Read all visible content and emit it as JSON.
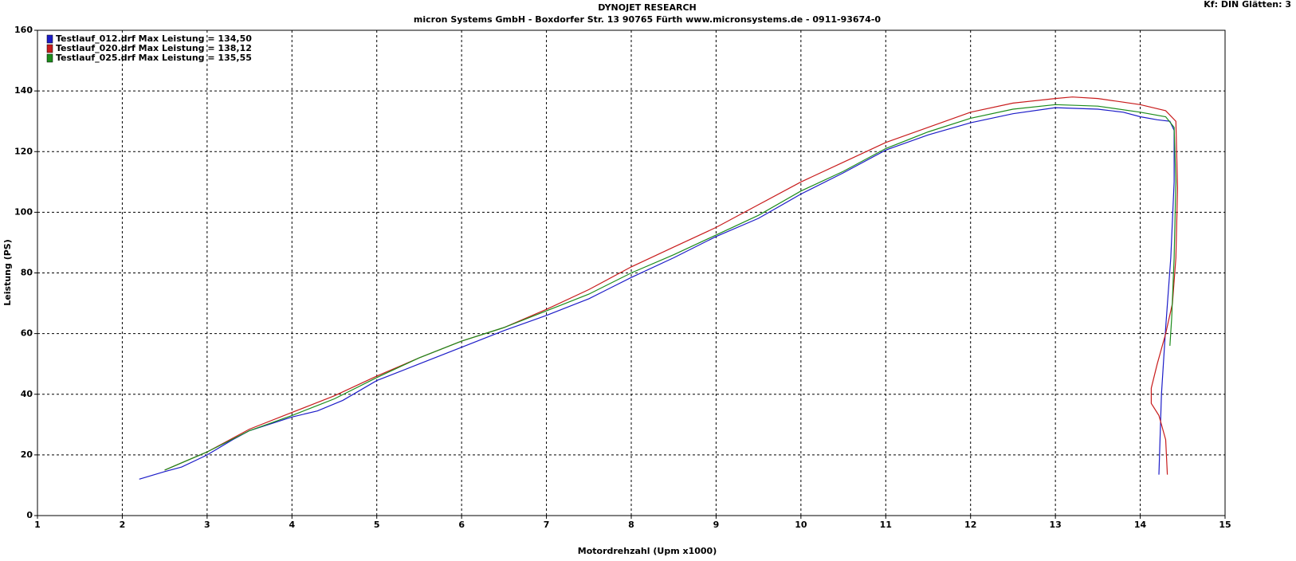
{
  "chart_data": {
    "type": "line",
    "title": "DYNOJET RESEARCH",
    "subtitle": "micron Systems GmbH - Boxdorfer Str. 13  90765 Fürth  www.micronsystems.de - 0911-93674-0",
    "annotation": "Kf: DIN  Glätten: 3",
    "x_label": "Motordrehzahl (Upm x1000)",
    "y_label": "Leistung (PS)",
    "xlim": [
      1,
      15
    ],
    "ylim": [
      0,
      160
    ],
    "xticks": [
      1,
      2,
      3,
      4,
      5,
      6,
      7,
      8,
      9,
      10,
      11,
      12,
      13,
      14,
      15
    ],
    "yticks": [
      0,
      20,
      40,
      60,
      80,
      100,
      120,
      140,
      160
    ],
    "grid": true,
    "legend": "top-left",
    "series": [
      {
        "name": "Testlauf_012.drf Max Leistung = 134,50",
        "color": "#1c1cc8",
        "x": [
          2.2,
          2.5,
          2.7,
          3,
          3.3,
          3.5,
          4,
          4.3,
          4.6,
          5,
          5.5,
          6,
          6.5,
          7,
          7.5,
          8,
          8.5,
          9,
          9.5,
          10,
          10.5,
          11,
          11.5,
          12,
          12.5,
          13,
          13.5,
          13.8,
          14,
          14.2,
          14.35,
          14.4,
          14.4,
          14.36,
          14.3,
          14.25,
          14.22
        ],
        "values": [
          12,
          14.5,
          16,
          20,
          25,
          28,
          32.5,
          34.5,
          38,
          44.5,
          50,
          55.5,
          61,
          66,
          71.5,
          78.5,
          85,
          92,
          98,
          106,
          113,
          120.5,
          125.5,
          129.5,
          132.5,
          134.5,
          134,
          133,
          131.5,
          130.5,
          130,
          127,
          110,
          85,
          62,
          40,
          13.5
        ]
      },
      {
        "name": "Testlauf_020.drf Max Leistung = 138,12",
        "color": "#c81c1c",
        "x": [
          2.5,
          3,
          3.5,
          4,
          4.5,
          5,
          5.5,
          6,
          6.5,
          7,
          7.5,
          8,
          8.5,
          9,
          9.5,
          10,
          10.5,
          11,
          11.5,
          12,
          12.5,
          13,
          13.2,
          13.5,
          14,
          14.3,
          14.42,
          14.44,
          14.42,
          14.38,
          14.3,
          14.2,
          14.13,
          14.13,
          14.22,
          14.3,
          14.32
        ],
        "values": [
          15,
          21,
          28.5,
          34,
          39.5,
          46,
          52,
          57.5,
          62,
          68,
          74.5,
          82,
          88.5,
          95,
          102.5,
          110,
          116.5,
          123,
          128,
          133,
          136,
          137.5,
          138,
          137.5,
          135.5,
          133.5,
          130,
          108,
          85,
          70,
          60,
          50,
          42,
          37,
          33,
          25,
          13.5
        ]
      },
      {
        "name": "Testlauf_025.drf Max Leistung = 135,55",
        "color": "#1c8c1c",
        "x": [
          2.5,
          3,
          3.5,
          4,
          4.5,
          5,
          5.5,
          6,
          6.5,
          7,
          7.5,
          8,
          8.5,
          9,
          9.5,
          10,
          10.5,
          11,
          11.5,
          12,
          12.5,
          13,
          13.5,
          14,
          14.3,
          14.4,
          14.42,
          14.4,
          14.37,
          14.35
        ],
        "values": [
          15,
          21,
          28,
          33,
          38.5,
          45.5,
          52,
          57.5,
          62,
          67.5,
          73,
          80,
          86,
          92.5,
          99,
          107,
          113.5,
          121,
          126.5,
          131,
          134,
          135.5,
          135,
          133,
          131.5,
          128,
          110,
          85,
          65,
          56
        ]
      }
    ]
  }
}
